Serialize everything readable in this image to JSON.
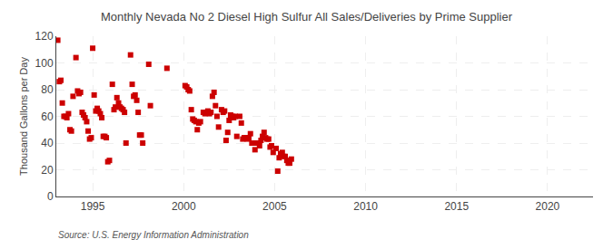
{
  "chart_data": {
    "type": "scatter",
    "title": "Monthly Nevada No 2 Diesel High Sulfur All Sales/Deliveries by Prime Supplier",
    "ylabel": "Thousand Gallons per Day",
    "annotations": [
      "Source: U.S. Energy Information Administration"
    ],
    "color": "#cc0000",
    "marker": "square",
    "grid": true,
    "xlim": [
      1993.0,
      2022.5
    ],
    "ylim": [
      0,
      120
    ],
    "xticks": [
      1995,
      2000,
      2005,
      2010,
      2015,
      2020
    ],
    "yticks": [
      0,
      20,
      40,
      60,
      80,
      100,
      120
    ],
    "x": [
      1993.08,
      1993.17,
      1993.25,
      1993.33,
      1993.42,
      1993.5,
      1993.58,
      1993.67,
      1993.75,
      1993.83,
      1993.92,
      1994.08,
      1994.17,
      1994.25,
      1994.33,
      1994.42,
      1994.5,
      1994.58,
      1994.67,
      1994.75,
      1994.83,
      1994.92,
      1995.0,
      1995.08,
      1995.17,
      1995.25,
      1995.33,
      1995.42,
      1995.5,
      1995.58,
      1995.67,
      1995.75,
      1995.83,
      1995.92,
      1996.08,
      1996.17,
      1996.25,
      1996.33,
      1996.42,
      1996.5,
      1996.58,
      1996.67,
      1996.75,
      1996.83,
      1997.08,
      1997.17,
      1997.25,
      1997.33,
      1997.42,
      1997.5,
      1997.58,
      1997.67,
      1997.75,
      1998.08,
      1998.17,
      1999.08,
      2000.08,
      2000.17,
      2000.25,
      2000.33,
      2000.42,
      2000.5,
      2000.58,
      2000.67,
      2000.75,
      2000.83,
      2000.92,
      2001.08,
      2001.17,
      2001.25,
      2001.33,
      2001.42,
      2001.5,
      2001.58,
      2001.67,
      2001.75,
      2001.83,
      2001.92,
      2002.08,
      2002.17,
      2002.25,
      2002.33,
      2002.42,
      2002.5,
      2002.58,
      2002.67,
      2002.75,
      2002.83,
      2002.92,
      2003.08,
      2003.17,
      2003.25,
      2003.33,
      2003.42,
      2003.5,
      2003.58,
      2003.67,
      2003.75,
      2003.83,
      2003.92,
      2004.08,
      2004.17,
      2004.25,
      2004.33,
      2004.42,
      2004.5,
      2004.58,
      2004.67,
      2004.75,
      2004.83,
      2004.92,
      2005.08,
      2005.17,
      2005.25,
      2005.33,
      2005.42,
      2005.5,
      2005.58,
      2005.67,
      2005.75,
      2005.83,
      2005.92
    ],
    "values": [
      117,
      86,
      87,
      70,
      60,
      60,
      59,
      62,
      50,
      49,
      75,
      104,
      79,
      77,
      78,
      63,
      61,
      59,
      56,
      49,
      43,
      44,
      111,
      76,
      64,
      66,
      64,
      62,
      59,
      45,
      45,
      44,
      26,
      27,
      84,
      65,
      67,
      74,
      70,
      67,
      66,
      65,
      63,
      40,
      106,
      84,
      75,
      76,
      72,
      63,
      46,
      46,
      40,
      99,
      68,
      96,
      83,
      82,
      80,
      79,
      65,
      58,
      57,
      56,
      50,
      55,
      56,
      63,
      62,
      63,
      64,
      62,
      63,
      75,
      78,
      68,
      60,
      52,
      65,
      63,
      64,
      42,
      48,
      57,
      61,
      60,
      59,
      60,
      45,
      60,
      55,
      43,
      44,
      44,
      43,
      44,
      47,
      40,
      40,
      35,
      40,
      38,
      42,
      45,
      48,
      44,
      43,
      43,
      37,
      38,
      33,
      36,
      19,
      29,
      32,
      33,
      30,
      30,
      27,
      25,
      25,
      28
    ]
  }
}
